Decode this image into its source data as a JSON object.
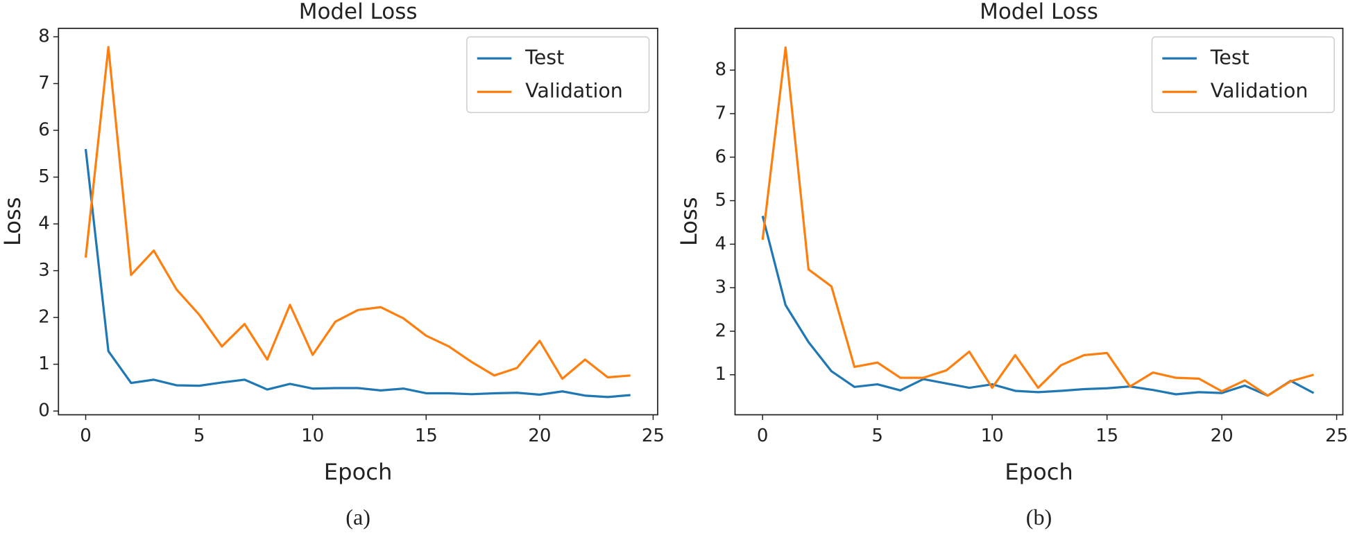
{
  "chart_data": [
    {
      "type": "line",
      "title": "Model Loss",
      "xlabel": "Epoch",
      "ylabel": "Loss",
      "caption": "(a)",
      "x": [
        0,
        1,
        2,
        3,
        4,
        5,
        6,
        7,
        8,
        9,
        10,
        11,
        12,
        13,
        14,
        15,
        16,
        17,
        18,
        19,
        20,
        21,
        22,
        23,
        24
      ],
      "series": [
        {
          "name": "Test",
          "color": "#1f77b4",
          "values": [
            5.6,
            1.28,
            0.6,
            0.67,
            0.55,
            0.54,
            0.61,
            0.67,
            0.46,
            0.58,
            0.48,
            0.49,
            0.49,
            0.44,
            0.48,
            0.38,
            0.38,
            0.36,
            0.38,
            0.39,
            0.35,
            0.42,
            0.33,
            0.3,
            0.34
          ]
        },
        {
          "name": "Validation",
          "color": "#ff7f0e",
          "values": [
            3.28,
            7.78,
            2.91,
            3.43,
            2.6,
            2.06,
            1.38,
            1.86,
            1.1,
            2.27,
            1.2,
            1.91,
            2.16,
            2.22,
            1.98,
            1.61,
            1.38,
            1.05,
            0.76,
            0.92,
            1.5,
            0.69,
            1.1,
            0.72,
            0.76
          ]
        }
      ],
      "xlim": [
        -1.2,
        25.2
      ],
      "xticks": [
        0,
        5,
        10,
        15,
        20,
        25
      ],
      "ylim": [
        -0.08,
        8.18
      ],
      "yticks": [
        0,
        1,
        2,
        3,
        4,
        5,
        6,
        7,
        8
      ],
      "legend": "upper right"
    },
    {
      "type": "line",
      "title": "Model Loss",
      "xlabel": "Epoch",
      "ylabel": "Loss",
      "caption": "(b)",
      "x": [
        0,
        1,
        2,
        3,
        4,
        5,
        6,
        7,
        8,
        9,
        10,
        11,
        12,
        13,
        14,
        15,
        16,
        17,
        18,
        19,
        20,
        21,
        22,
        23,
        24
      ],
      "series": [
        {
          "name": "Test",
          "color": "#1f77b4",
          "values": [
            4.65,
            2.6,
            1.75,
            1.08,
            0.72,
            0.78,
            0.64,
            0.9,
            0.8,
            0.7,
            0.78,
            0.63,
            0.6,
            0.63,
            0.67,
            0.69,
            0.73,
            0.65,
            0.55,
            0.6,
            0.58,
            0.75,
            0.52,
            0.86,
            0.58
          ]
        },
        {
          "name": "Validation",
          "color": "#ff7f0e",
          "values": [
            4.1,
            8.52,
            3.42,
            3.03,
            1.18,
            1.28,
            0.93,
            0.93,
            1.1,
            1.53,
            0.7,
            1.45,
            0.7,
            1.22,
            1.45,
            1.5,
            0.73,
            1.05,
            0.93,
            0.91,
            0.62,
            0.87,
            0.52,
            0.85,
            1.0
          ]
        }
      ],
      "xlim": [
        -1.2,
        25.27
      ],
      "xticks": [
        0,
        5,
        10,
        15,
        20,
        25
      ],
      "ylim": [
        0.08,
        8.96
      ],
      "yticks": [
        1,
        2,
        3,
        4,
        5,
        6,
        7,
        8
      ],
      "legend": "upper right"
    }
  ]
}
